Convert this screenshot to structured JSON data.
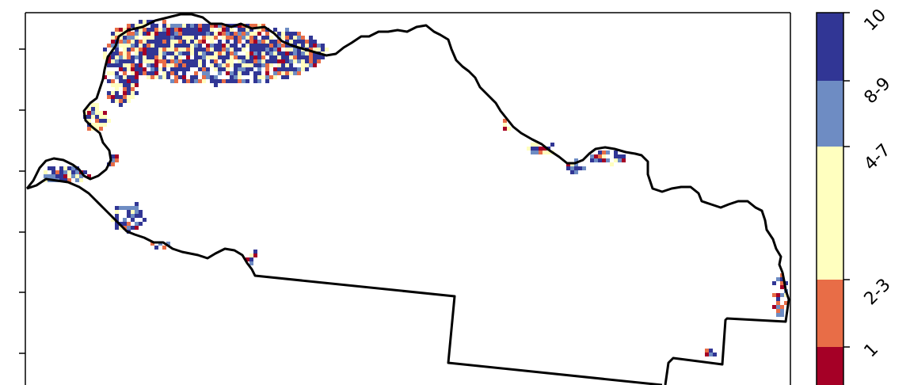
{
  "legend": {
    "labels": [
      "1",
      "2-3",
      "4-7",
      "8-9",
      "10"
    ],
    "colors": {
      "1": "#a50026",
      "2-3": "#e86d47",
      "4-7": "#ffffbf",
      "8-9": "#6e8cc3",
      "10": "#313695"
    }
  },
  "styles": {
    "boundary": "#000000",
    "frame": "#000000",
    "background": "#ffffff"
  }
}
